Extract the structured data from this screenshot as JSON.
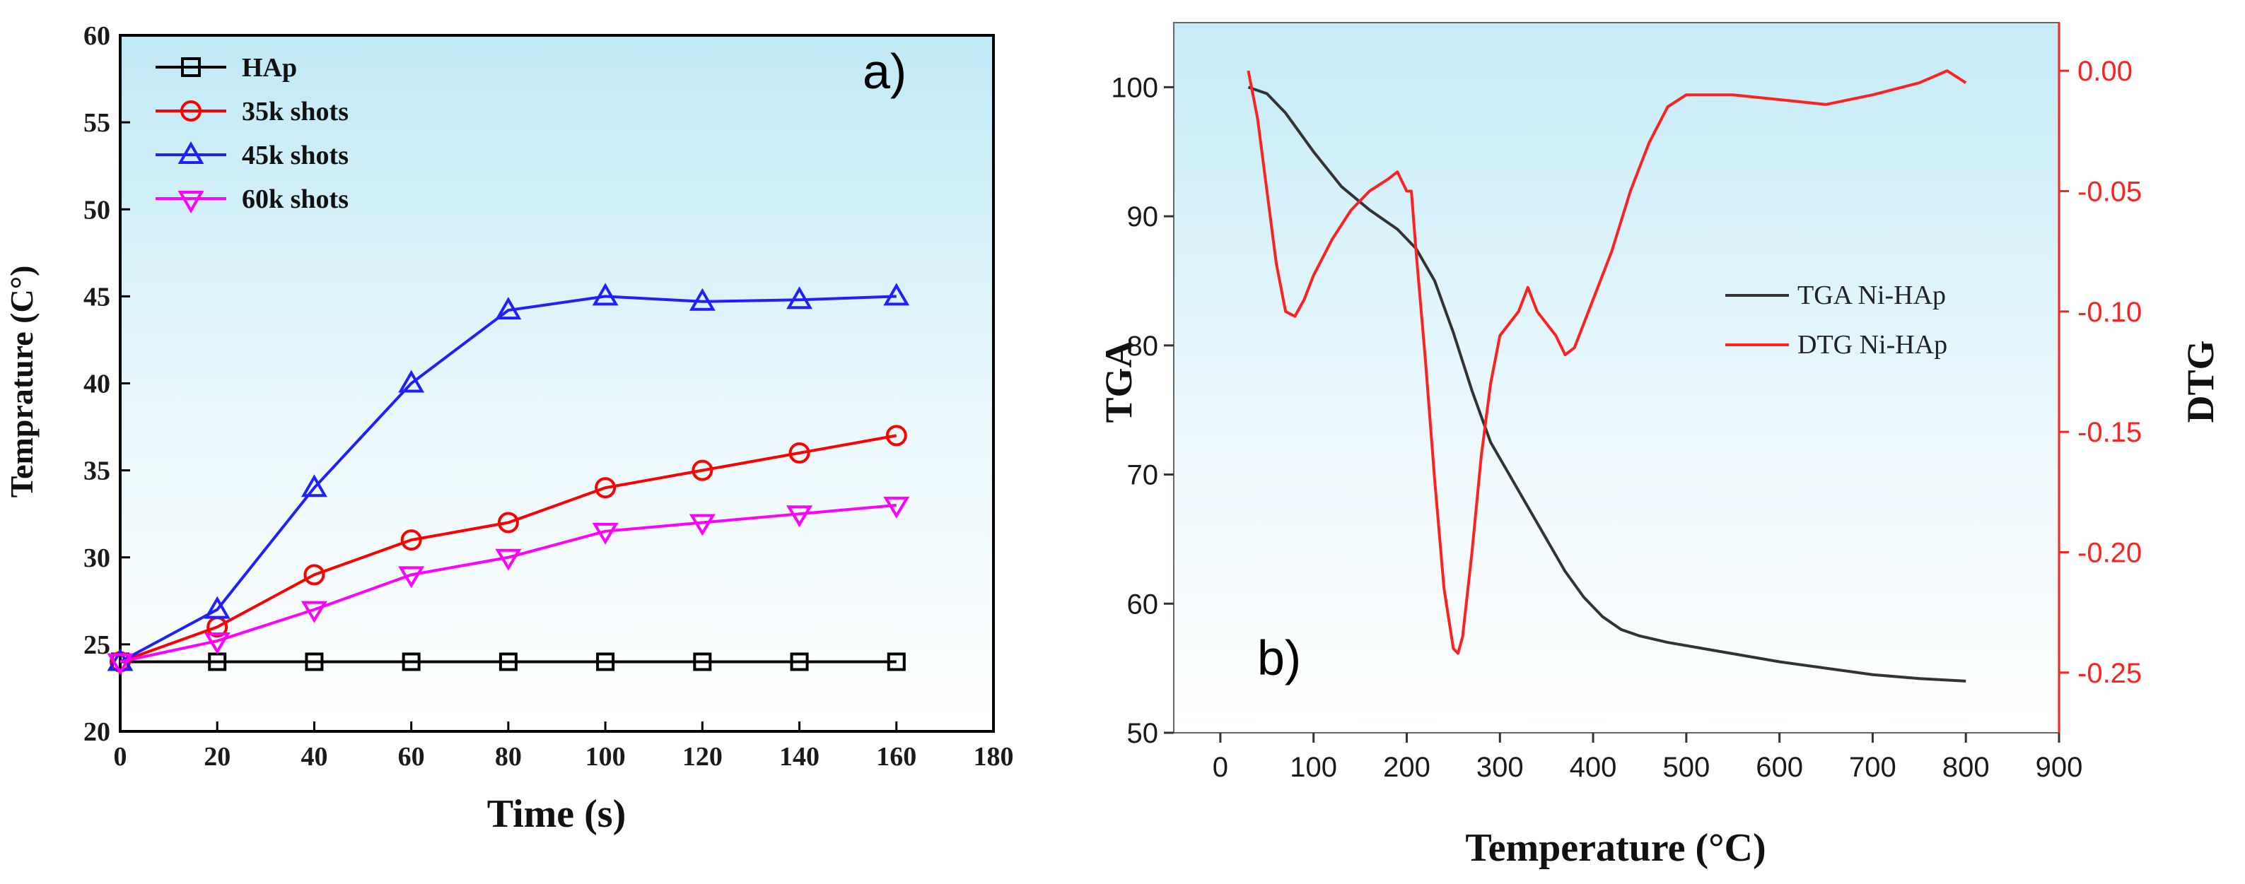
{
  "chart_data": [
    {
      "type": "line",
      "panel_label": "a)",
      "xlabel": "Time (s)",
      "ylabel": "Temprature (C°)",
      "xlim": [
        0,
        180
      ],
      "ylim": [
        20,
        60
      ],
      "xticks": [
        0,
        20,
        40,
        60,
        80,
        100,
        120,
        140,
        160,
        180
      ],
      "yticks": [
        20,
        25,
        30,
        35,
        40,
        45,
        50,
        55,
        60
      ],
      "legend_position": "top-left",
      "x": [
        0,
        20,
        40,
        60,
        80,
        100,
        120,
        140,
        160
      ],
      "series": [
        {
          "name": "HAp",
          "color": "#000000",
          "marker": "square",
          "values": [
            24,
            24,
            24,
            24,
            24,
            24,
            24,
            24,
            24
          ]
        },
        {
          "name": "35k shots",
          "color": "#ff0000",
          "marker": "circle",
          "values": [
            24,
            26,
            29,
            31,
            32,
            34,
            35,
            36,
            37
          ]
        },
        {
          "name": "45k shots",
          "color": "#1f1fff",
          "marker": "triangle-up",
          "values": [
            24,
            27,
            34,
            40,
            44.2,
            45,
            44.7,
            44.8,
            45
          ]
        },
        {
          "name": "60k shots",
          "color": "#ff00ff",
          "marker": "triangle-down",
          "values": [
            24,
            25.2,
            27,
            29,
            30,
            31.5,
            32,
            32.5,
            33
          ]
        }
      ]
    },
    {
      "type": "line",
      "panel_label": "b)",
      "xlabel": "Temperature (°C)",
      "ylabel": "TGA",
      "ylabel_right": "DTG",
      "xlim": [
        -50,
        900
      ],
      "ylim": [
        50,
        105
      ],
      "ylim_right": [
        -0.275,
        0.02
      ],
      "xticks": [
        0,
        100,
        200,
        300,
        400,
        500,
        600,
        700,
        800,
        900
      ],
      "yticks": [
        50,
        60,
        70,
        80,
        90,
        100
      ],
      "yticks_right": [
        "0.00",
        "-0.05",
        "-0.10",
        "-0.15",
        "-0.20",
        "-0.25"
      ],
      "legend_position": "center-right",
      "series": [
        {
          "name": "TGA Ni-HAp",
          "color": "#333333",
          "axis": "left",
          "x": [
            30,
            50,
            70,
            100,
            130,
            160,
            190,
            210,
            230,
            250,
            270,
            290,
            310,
            330,
            350,
            370,
            390,
            410,
            430,
            450,
            480,
            520,
            560,
            600,
            650,
            700,
            750,
            800
          ],
          "values": [
            100,
            99.5,
            98,
            95,
            92.3,
            90.5,
            89,
            87.5,
            85,
            81,
            76.5,
            72.5,
            70,
            67.5,
            65,
            62.5,
            60.5,
            59,
            58,
            57.5,
            57,
            56.5,
            56,
            55.5,
            55,
            54.5,
            54.2,
            54
          ]
        },
        {
          "name": "DTG Ni-HAp",
          "color": "#ff2020",
          "axis": "right",
          "x": [
            30,
            40,
            50,
            60,
            70,
            80,
            90,
            100,
            120,
            140,
            160,
            180,
            190,
            200,
            205,
            210,
            220,
            230,
            240,
            250,
            255,
            260,
            270,
            280,
            290,
            300,
            310,
            320,
            330,
            340,
            350,
            360,
            370,
            380,
            390,
            400,
            420,
            440,
            460,
            480,
            500,
            550,
            600,
            650,
            700,
            750,
            780,
            800
          ],
          "values": [
            0.0,
            -0.02,
            -0.05,
            -0.08,
            -0.1,
            -0.102,
            -0.095,
            -0.085,
            -0.07,
            -0.058,
            -0.05,
            -0.045,
            -0.042,
            -0.05,
            -0.05,
            -0.075,
            -0.12,
            -0.17,
            -0.215,
            -0.24,
            -0.242,
            -0.235,
            -0.2,
            -0.16,
            -0.13,
            -0.11,
            -0.105,
            -0.1,
            -0.09,
            -0.1,
            -0.105,
            -0.11,
            -0.118,
            -0.115,
            -0.105,
            -0.095,
            -0.075,
            -0.05,
            -0.03,
            -0.015,
            -0.01,
            -0.01,
            -0.012,
            -0.014,
            -0.01,
            -0.005,
            0.0,
            -0.005
          ]
        }
      ]
    }
  ]
}
